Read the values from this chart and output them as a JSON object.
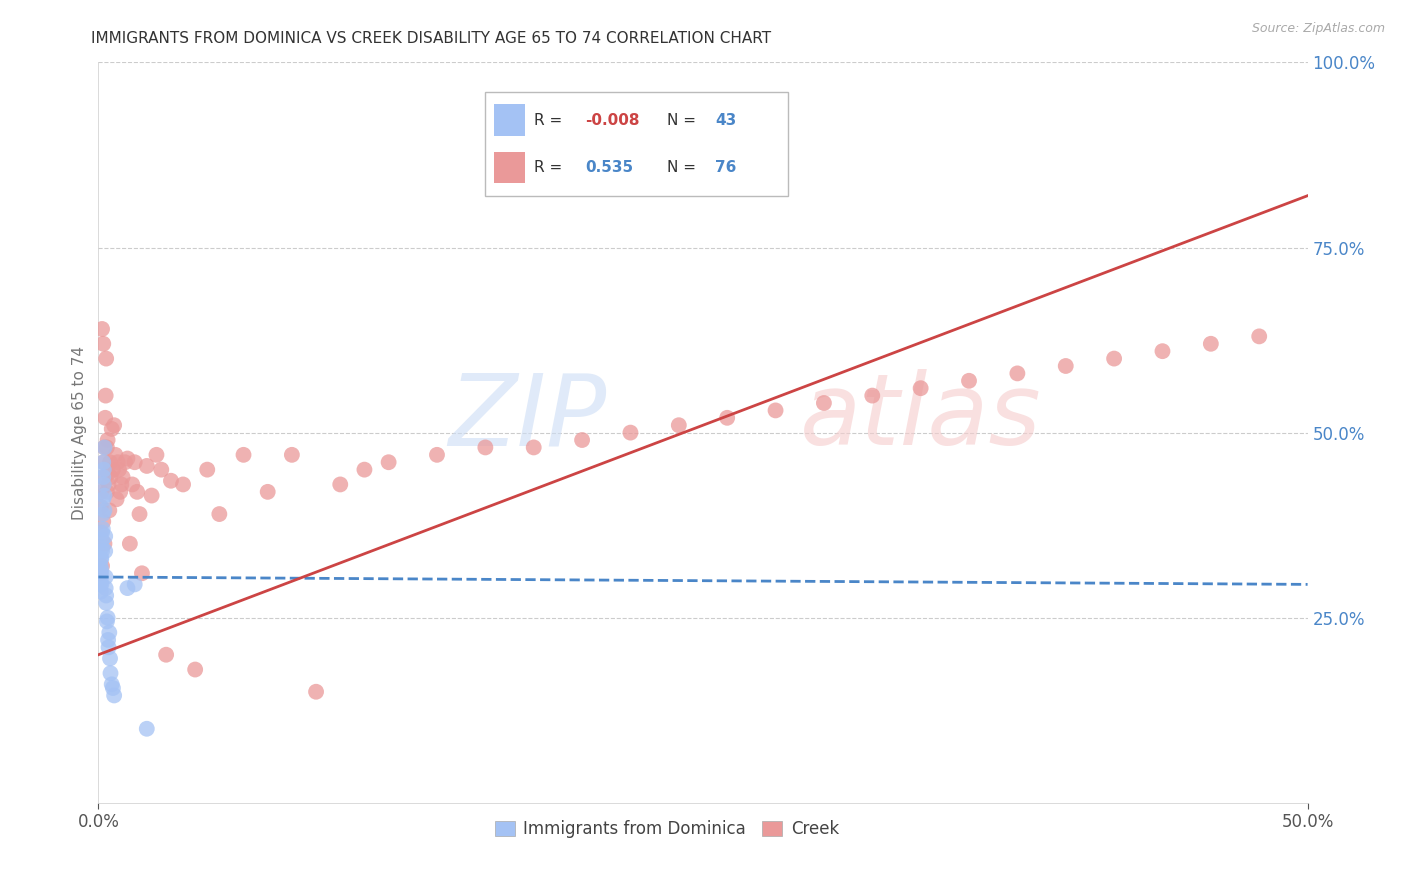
{
  "title": "IMMIGRANTS FROM DOMINICA VS CREEK DISABILITY AGE 65 TO 74 CORRELATION CHART",
  "source": "Source: ZipAtlas.com",
  "ylabel": "Disability Age 65 to 74",
  "xlim": [
    0.0,
    0.5
  ],
  "ylim": [
    0.0,
    1.0
  ],
  "x_ticks": [
    0.0,
    0.5
  ],
  "x_tick_labels": [
    "0.0%",
    "50.0%"
  ],
  "y_ticks_right": [
    0.25,
    0.5,
    0.75,
    1.0
  ],
  "y_tick_labels_right": [
    "25.0%",
    "50.0%",
    "75.0%",
    "100.0%"
  ],
  "blue_color": "#a4c2f4",
  "pink_color": "#ea9999",
  "blue_line_color": "#4a86c8",
  "pink_line_color": "#cc4444",
  "background_color": "#ffffff",
  "grid_color": "#cccccc",
  "dominica_x": [
    0.0008,
    0.0008,
    0.0008,
    0.001,
    0.001,
    0.001,
    0.001,
    0.0012,
    0.0012,
    0.0012,
    0.0015,
    0.0015,
    0.0015,
    0.0015,
    0.0018,
    0.0018,
    0.002,
    0.002,
    0.002,
    0.0022,
    0.0022,
    0.0025,
    0.0025,
    0.0025,
    0.0028,
    0.0028,
    0.003,
    0.003,
    0.0032,
    0.0032,
    0.0035,
    0.0038,
    0.004,
    0.0042,
    0.0045,
    0.0048,
    0.005,
    0.0055,
    0.006,
    0.0065,
    0.012,
    0.015,
    0.02
  ],
  "dominica_y": [
    0.31,
    0.295,
    0.32,
    0.3,
    0.285,
    0.31,
    0.33,
    0.295,
    0.315,
    0.33,
    0.345,
    0.355,
    0.34,
    0.365,
    0.37,
    0.39,
    0.41,
    0.44,
    0.46,
    0.45,
    0.43,
    0.395,
    0.415,
    0.48,
    0.36,
    0.34,
    0.29,
    0.305,
    0.27,
    0.28,
    0.245,
    0.25,
    0.22,
    0.21,
    0.23,
    0.195,
    0.175,
    0.16,
    0.155,
    0.145,
    0.29,
    0.295,
    0.1
  ],
  "creek_x": [
    0.0008,
    0.001,
    0.001,
    0.0012,
    0.0015,
    0.0015,
    0.0018,
    0.002,
    0.002,
    0.0022,
    0.0025,
    0.0025,
    0.0028,
    0.003,
    0.0032,
    0.0035,
    0.0035,
    0.0038,
    0.004,
    0.0042,
    0.0045,
    0.0048,
    0.005,
    0.0055,
    0.006,
    0.0065,
    0.007,
    0.0075,
    0.008,
    0.0085,
    0.009,
    0.0095,
    0.01,
    0.011,
    0.012,
    0.013,
    0.014,
    0.015,
    0.016,
    0.017,
    0.018,
    0.02,
    0.022,
    0.024,
    0.026,
    0.028,
    0.03,
    0.035,
    0.04,
    0.045,
    0.05,
    0.06,
    0.07,
    0.08,
    0.09,
    0.1,
    0.11,
    0.12,
    0.14,
    0.16,
    0.18,
    0.2,
    0.22,
    0.24,
    0.26,
    0.28,
    0.3,
    0.32,
    0.34,
    0.36,
    0.38,
    0.4,
    0.42,
    0.44,
    0.46,
    0.48
  ],
  "creek_y": [
    0.31,
    0.365,
    0.4,
    0.42,
    0.32,
    0.64,
    0.44,
    0.62,
    0.38,
    0.46,
    0.35,
    0.48,
    0.52,
    0.55,
    0.6,
    0.42,
    0.48,
    0.49,
    0.445,
    0.43,
    0.395,
    0.46,
    0.44,
    0.505,
    0.45,
    0.51,
    0.47,
    0.41,
    0.46,
    0.45,
    0.42,
    0.43,
    0.44,
    0.46,
    0.465,
    0.35,
    0.43,
    0.46,
    0.42,
    0.39,
    0.31,
    0.455,
    0.415,
    0.47,
    0.45,
    0.2,
    0.435,
    0.43,
    0.18,
    0.45,
    0.39,
    0.47,
    0.42,
    0.47,
    0.15,
    0.43,
    0.45,
    0.46,
    0.47,
    0.48,
    0.48,
    0.49,
    0.5,
    0.51,
    0.52,
    0.53,
    0.54,
    0.55,
    0.56,
    0.57,
    0.58,
    0.59,
    0.6,
    0.61,
    0.62,
    0.63
  ],
  "blue_trendline_x": [
    0.0,
    0.5
  ],
  "blue_trendline_y": [
    0.305,
    0.295
  ],
  "pink_trendline_x": [
    0.0,
    0.5
  ],
  "pink_trendline_y": [
    0.2,
    0.82
  ]
}
